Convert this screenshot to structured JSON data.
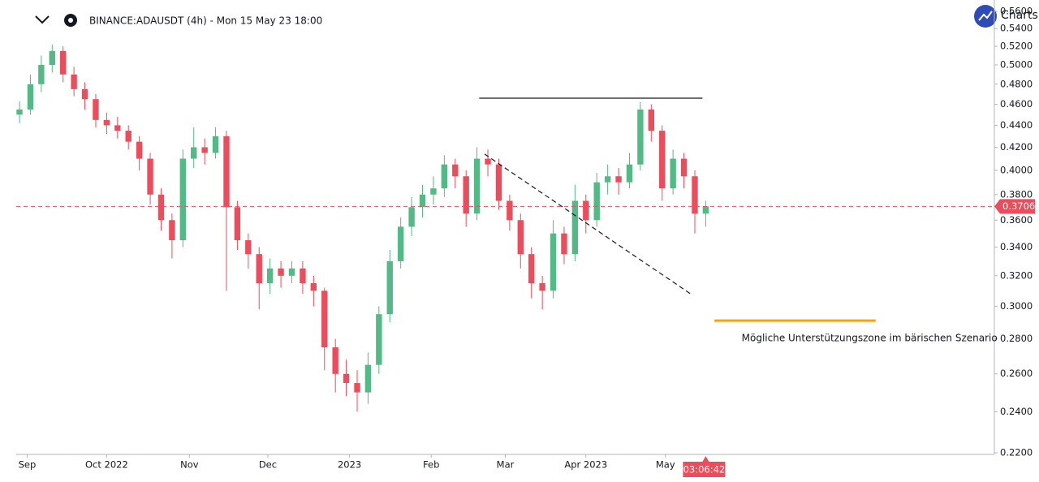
{
  "chart_data": {
    "type": "candlestick",
    "title": "BINANCE:ADAUSDT (4h) - Mon 15 May 23 18:00",
    "logo_text": "Charts",
    "log_scale": true,
    "up_color": "#53b987",
    "down_color": "#eb4d5c",
    "open": [
      0.45,
      0.455,
      0.48,
      0.5,
      0.515,
      0.49,
      0.475,
      0.465,
      0.445,
      0.44,
      0.435,
      0.425,
      0.41,
      0.38,
      0.36,
      0.345,
      0.41,
      0.42,
      0.415,
      0.43,
      0.37,
      0.345,
      0.335,
      0.315,
      0.325,
      0.32,
      0.325,
      0.315,
      0.31,
      0.275,
      0.26,
      0.255,
      0.25,
      0.265,
      0.295,
      0.33,
      0.355,
      0.37,
      0.38,
      0.385,
      0.405,
      0.395,
      0.365,
      0.41,
      0.405,
      0.375,
      0.36,
      0.335,
      0.315,
      0.31,
      0.35,
      0.335,
      0.375,
      0.36,
      0.39,
      0.395,
      0.39,
      0.405,
      0.455,
      0.435,
      0.385,
      0.41,
      0.395,
      0.365
    ],
    "high": [
      0.463,
      0.49,
      0.51,
      0.522,
      0.52,
      0.498,
      0.482,
      0.47,
      0.452,
      0.448,
      0.44,
      0.43,
      0.415,
      0.385,
      0.365,
      0.418,
      0.438,
      0.428,
      0.438,
      0.435,
      0.375,
      0.35,
      0.34,
      0.332,
      0.33,
      0.33,
      0.33,
      0.32,
      0.312,
      0.28,
      0.268,
      0.262,
      0.272,
      0.3,
      0.338,
      0.362,
      0.378,
      0.388,
      0.395,
      0.413,
      0.41,
      0.4,
      0.42,
      0.418,
      0.41,
      0.38,
      0.365,
      0.34,
      0.32,
      0.36,
      0.355,
      0.388,
      0.38,
      0.398,
      0.405,
      0.402,
      0.415,
      0.462,
      0.46,
      0.44,
      0.418,
      0.415,
      0.4,
      0.375
    ],
    "low": [
      0.442,
      0.45,
      0.472,
      0.492,
      0.482,
      0.468,
      0.455,
      0.438,
      0.432,
      0.428,
      0.418,
      0.4,
      0.372,
      0.352,
      0.332,
      0.34,
      0.402,
      0.405,
      0.41,
      0.31,
      0.338,
      0.325,
      0.298,
      0.308,
      0.312,
      0.315,
      0.308,
      0.3,
      0.262,
      0.25,
      0.248,
      0.24,
      0.244,
      0.26,
      0.29,
      0.325,
      0.348,
      0.362,
      0.372,
      0.378,
      0.385,
      0.355,
      0.36,
      0.395,
      0.368,
      0.352,
      0.325,
      0.305,
      0.298,
      0.305,
      0.328,
      0.33,
      0.35,
      0.355,
      0.38,
      0.38,
      0.385,
      0.4,
      0.425,
      0.375,
      0.38,
      0.385,
      0.35,
      0.355
    ],
    "close": [
      0.455,
      0.48,
      0.5,
      0.515,
      0.49,
      0.475,
      0.465,
      0.445,
      0.44,
      0.435,
      0.425,
      0.41,
      0.38,
      0.36,
      0.345,
      0.41,
      0.42,
      0.415,
      0.43,
      0.37,
      0.345,
      0.335,
      0.315,
      0.325,
      0.32,
      0.325,
      0.315,
      0.31,
      0.275,
      0.26,
      0.255,
      0.25,
      0.265,
      0.295,
      0.33,
      0.355,
      0.37,
      0.38,
      0.385,
      0.405,
      0.395,
      0.365,
      0.41,
      0.405,
      0.375,
      0.36,
      0.335,
      0.315,
      0.31,
      0.35,
      0.335,
      0.375,
      0.36,
      0.39,
      0.395,
      0.39,
      0.405,
      0.455,
      0.435,
      0.385,
      0.41,
      0.395,
      0.365,
      0.3706
    ],
    "last_price": 0.3706,
    "countdown": "03:06:42",
    "xlim": [
      -0.3,
      89.5
    ],
    "ylim": [
      0.22,
      0.56
    ],
    "xticks": [
      {
        "value": 0.7,
        "label": "Sep"
      },
      {
        "value": 8.0,
        "label": "Oct 2022"
      },
      {
        "value": 15.6,
        "label": "Nov"
      },
      {
        "value": 22.8,
        "label": "Dec"
      },
      {
        "value": 30.3,
        "label": "2023"
      },
      {
        "value": 37.8,
        "label": "Feb"
      },
      {
        "value": 44.6,
        "label": "Mar"
      },
      {
        "value": 52.0,
        "label": "Apr 2023"
      },
      {
        "value": 59.3,
        "label": "May"
      }
    ],
    "yticks": [
      {
        "value": 0.22,
        "label": "0.2200"
      },
      {
        "value": 0.24,
        "label": "0.2400"
      },
      {
        "value": 0.26,
        "label": "0.2600"
      },
      {
        "value": 0.28,
        "label": "0.2800"
      },
      {
        "value": 0.3,
        "label": "0.3000"
      },
      {
        "value": 0.32,
        "label": "0.3200"
      },
      {
        "value": 0.34,
        "label": "0.3400"
      },
      {
        "value": 0.36,
        "label": "0.3600"
      },
      {
        "value": 0.38,
        "label": "0.3800"
      },
      {
        "value": 0.4,
        "label": "0.4000"
      },
      {
        "value": 0.42,
        "label": "0.4200"
      },
      {
        "value": 0.44,
        "label": "0.4400"
      },
      {
        "value": 0.46,
        "label": "0.4600"
      },
      {
        "value": 0.48,
        "label": "0.4800"
      },
      {
        "value": 0.5,
        "label": "0.5000"
      },
      {
        "value": 0.52,
        "label": "0.5200"
      },
      {
        "value": 0.54,
        "label": "0.5400"
      },
      {
        "value": 0.56,
        "label": "0.5600"
      }
    ],
    "drawings": [
      {
        "kind": "resistance",
        "color": "#131722",
        "dash": false,
        "x": [
          42.2,
          62.7
        ],
        "y": [
          0.466,
          0.466
        ]
      },
      {
        "kind": "trendline",
        "color": "#131722",
        "dash": true,
        "x": [
          42.7,
          61.6
        ],
        "y": [
          0.414,
          0.308
        ]
      },
      {
        "kind": "support",
        "color": "#f0a31c",
        "dash": false,
        "x": [
          63.8,
          78.6
        ],
        "y": [
          0.291,
          0.291
        ]
      }
    ],
    "annotation": "Mögliche Unterstützungszone im bärischen Szenario"
  }
}
